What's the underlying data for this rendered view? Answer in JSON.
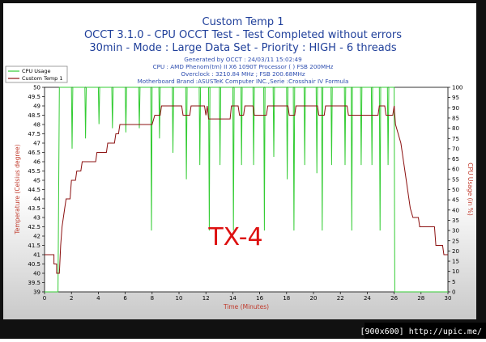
{
  "titles": {
    "line1": "Custom Temp 1",
    "line2": "OCCT 3.1.0 - CPU OCCT Test - Test Completed without errors",
    "line3": "30min - Mode : Large Data Set - Priority : HIGH - 6 threads"
  },
  "info": {
    "generated": "Generated by OCCT : 24/03/11 15:02:49",
    "cpu": "CPU : AMD Phenom(tm) II X6 1090T Processor ( ) FSB 200MHz",
    "overclock": "Overclock : 3210.84 MHz ; FSB 200.68MHz",
    "motherboard": "Motherboard Brand :ASUSTeK Computer INC.,Serie :Crosshair IV Formula"
  },
  "watermark": "[900x600] http://upic.me/",
  "colors": {
    "cpu_usage": "#33cc33",
    "temperature": "#8b1010",
    "title": "#1f3f9a",
    "annotation": "#dd1111",
    "frame": "#000000"
  },
  "chart_data": {
    "type": "line",
    "xlabel": "Time (Minutes)",
    "ylabel_left": "Temperature (Celsius degree)",
    "ylabel_right": "CPU Usage (in %)",
    "xlim": [
      0,
      30
    ],
    "ylim_left": [
      39,
      50
    ],
    "ylim_right": [
      0,
      100
    ],
    "x_ticks": [
      0,
      2,
      4,
      6,
      8,
      10,
      12,
      14,
      16,
      18,
      20,
      22,
      24,
      26,
      28,
      30
    ],
    "y_ticks_left": [
      "39",
      "39.5",
      "40",
      "40.5",
      "41",
      "41.5",
      "42",
      "42.5",
      "43",
      "43.5",
      "44",
      "44.5",
      "45",
      "45.5",
      "46",
      "46.5",
      "47",
      "47.5",
      "48",
      "48.5",
      "49",
      "49.5",
      "50"
    ],
    "y_ticks_right": [
      0,
      5,
      10,
      15,
      20,
      25,
      30,
      35,
      40,
      45,
      50,
      55,
      60,
      65,
      70,
      75,
      80,
      85,
      90,
      95,
      100
    ],
    "grid": false,
    "legend_position": "top-left",
    "annotation": "TX-4",
    "series": [
      {
        "name": "CPU Usage",
        "axis": "right",
        "points": [
          [
            0,
            0
          ],
          [
            1,
            0
          ],
          [
            1.1,
            100
          ],
          [
            2,
            100
          ],
          [
            2.05,
            70
          ],
          [
            2.1,
            100
          ],
          [
            3,
            100
          ],
          [
            3.05,
            75
          ],
          [
            3.1,
            100
          ],
          [
            4,
            100
          ],
          [
            4.05,
            82
          ],
          [
            4.1,
            100
          ],
          [
            5,
            100
          ],
          [
            5.05,
            80
          ],
          [
            5.1,
            100
          ],
          [
            6,
            100
          ],
          [
            6.05,
            78
          ],
          [
            6.1,
            100
          ],
          [
            7,
            100
          ],
          [
            7.05,
            80
          ],
          [
            7.1,
            100
          ],
          [
            7.9,
            100
          ],
          [
            7.95,
            30
          ],
          [
            8,
            100
          ],
          [
            8.5,
            100
          ],
          [
            8.55,
            75
          ],
          [
            8.6,
            100
          ],
          [
            9.5,
            100
          ],
          [
            9.55,
            68
          ],
          [
            9.6,
            100
          ],
          [
            10.5,
            100
          ],
          [
            10.55,
            55
          ],
          [
            10.6,
            100
          ],
          [
            11.5,
            100
          ],
          [
            11.55,
            62
          ],
          [
            11.6,
            100
          ],
          [
            12.2,
            100
          ],
          [
            12.25,
            30
          ],
          [
            12.3,
            100
          ],
          [
            13,
            100
          ],
          [
            13.05,
            62
          ],
          [
            13.1,
            100
          ],
          [
            14,
            100
          ],
          [
            14.05,
            30
          ],
          [
            14.1,
            100
          ],
          [
            14.6,
            100
          ],
          [
            14.65,
            62
          ],
          [
            14.7,
            100
          ],
          [
            15.5,
            100
          ],
          [
            15.55,
            62
          ],
          [
            15.6,
            100
          ],
          [
            16.3,
            100
          ],
          [
            16.35,
            30
          ],
          [
            16.4,
            100
          ],
          [
            17,
            100
          ],
          [
            17.05,
            66
          ],
          [
            17.1,
            100
          ],
          [
            18,
            100
          ],
          [
            18.05,
            55
          ],
          [
            18.1,
            100
          ],
          [
            18.5,
            100
          ],
          [
            18.55,
            30
          ],
          [
            18.6,
            100
          ],
          [
            19.3,
            100
          ],
          [
            19.35,
            62
          ],
          [
            19.4,
            100
          ],
          [
            20.2,
            100
          ],
          [
            20.25,
            58
          ],
          [
            20.3,
            100
          ],
          [
            20.6,
            100
          ],
          [
            20.65,
            30
          ],
          [
            20.7,
            100
          ],
          [
            21.3,
            100
          ],
          [
            21.35,
            62
          ],
          [
            21.4,
            100
          ],
          [
            22.3,
            100
          ],
          [
            22.35,
            62
          ],
          [
            22.4,
            100
          ],
          [
            22.8,
            100
          ],
          [
            22.85,
            30
          ],
          [
            22.9,
            100
          ],
          [
            23.5,
            100
          ],
          [
            23.55,
            62
          ],
          [
            23.6,
            100
          ],
          [
            24.3,
            100
          ],
          [
            24.35,
            62
          ],
          [
            24.4,
            100
          ],
          [
            24.9,
            100
          ],
          [
            24.95,
            30
          ],
          [
            25,
            100
          ],
          [
            25.5,
            100
          ],
          [
            25.55,
            62
          ],
          [
            25.6,
            100
          ],
          [
            26,
            100
          ],
          [
            26.05,
            0
          ],
          [
            30,
            0
          ]
        ]
      },
      {
        "name": "Custom Temp 1",
        "axis": "left",
        "points": [
          [
            0,
            41
          ],
          [
            0.7,
            41
          ],
          [
            0.7,
            40.5
          ],
          [
            0.9,
            40.5
          ],
          [
            0.9,
            40
          ],
          [
            1.1,
            40
          ],
          [
            1.2,
            41.5
          ],
          [
            1.3,
            42.5
          ],
          [
            1.5,
            43.5
          ],
          [
            1.6,
            44
          ],
          [
            1.9,
            44
          ],
          [
            2,
            45
          ],
          [
            2.3,
            45
          ],
          [
            2.4,
            45.5
          ],
          [
            2.7,
            45.5
          ],
          [
            2.8,
            46
          ],
          [
            3.8,
            46
          ],
          [
            3.9,
            46.5
          ],
          [
            4.6,
            46.5
          ],
          [
            4.7,
            47
          ],
          [
            5.2,
            47
          ],
          [
            5.3,
            47.5
          ],
          [
            5.5,
            47.5
          ],
          [
            5.6,
            48
          ],
          [
            8,
            48
          ],
          [
            8.2,
            48.5
          ],
          [
            8.6,
            48.5
          ],
          [
            8.7,
            49
          ],
          [
            10.2,
            49
          ],
          [
            10.3,
            48.5
          ],
          [
            10.8,
            48.5
          ],
          [
            10.9,
            49
          ],
          [
            11.9,
            49
          ],
          [
            12,
            48.5
          ],
          [
            12.1,
            49
          ],
          [
            12.2,
            48.3
          ],
          [
            13.8,
            48.3
          ],
          [
            13.9,
            49
          ],
          [
            14.4,
            49
          ],
          [
            14.5,
            48.5
          ],
          [
            14.8,
            48.5
          ],
          [
            14.9,
            49
          ],
          [
            15.5,
            49
          ],
          [
            15.6,
            48.5
          ],
          [
            16.5,
            48.5
          ],
          [
            16.6,
            49
          ],
          [
            18.1,
            49
          ],
          [
            18.2,
            48.5
          ],
          [
            18.6,
            48.5
          ],
          [
            18.7,
            49
          ],
          [
            20.3,
            49
          ],
          [
            20.4,
            48.5
          ],
          [
            20.8,
            48.5
          ],
          [
            20.9,
            49
          ],
          [
            22.5,
            49
          ],
          [
            22.6,
            48.5
          ],
          [
            24.8,
            48.5
          ],
          [
            24.9,
            49
          ],
          [
            25.3,
            49
          ],
          [
            25.4,
            48.5
          ],
          [
            25.9,
            48.5
          ],
          [
            26,
            49
          ],
          [
            26.1,
            48
          ],
          [
            26.5,
            47
          ],
          [
            26.8,
            45.5
          ],
          [
            27,
            44.5
          ],
          [
            27.2,
            43.5
          ],
          [
            27.4,
            43
          ],
          [
            27.8,
            43
          ],
          [
            27.9,
            42.5
          ],
          [
            29,
            42.5
          ],
          [
            29.1,
            41.5
          ],
          [
            29.6,
            41.5
          ],
          [
            29.7,
            41
          ],
          [
            30,
            41
          ]
        ]
      }
    ]
  }
}
